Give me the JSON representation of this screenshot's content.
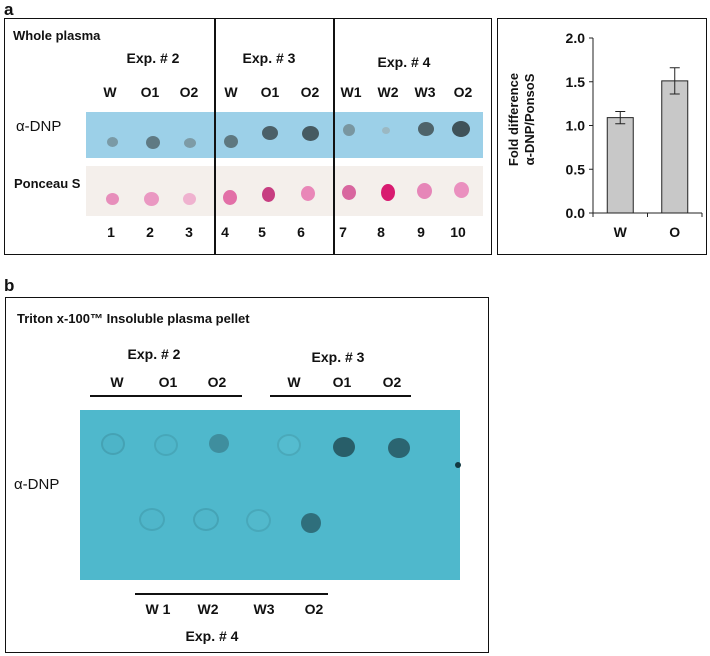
{
  "panel_a": {
    "letter": "a",
    "title": "Whole plasma",
    "groups": [
      "Exp. # 2",
      "Exp. # 3",
      "Exp. # 4"
    ],
    "lanes": [
      "W",
      "O1",
      "O2",
      "W",
      "O1",
      "O2",
      "W1",
      "W2",
      "W3",
      "O2"
    ],
    "row1_label": "α-DNP",
    "row2_label": "Ponceau S",
    "numbers": [
      "1",
      "2",
      "3",
      "4",
      "5",
      "6",
      "7",
      "8",
      "9",
      "10"
    ],
    "blot_color": "#9cd0e8",
    "stain_color": "#f4efeb"
  },
  "panel_b": {
    "letter": "b",
    "title": "Triton x-100™ Insoluble plasma pellet",
    "top_groups": [
      "Exp. # 2",
      "Exp. # 3"
    ],
    "top_lanes": [
      "W",
      "O1",
      "O2",
      "W",
      "O1",
      "O2"
    ],
    "bottom_lanes": [
      "W 1",
      "W2",
      "W3",
      "O2"
    ],
    "bottom_group": "Exp. # 4",
    "row_label": "α-DNP",
    "membrane_color": "#4fb8cc"
  },
  "chart_data": {
    "type": "bar",
    "categories": [
      "W",
      "O"
    ],
    "values": [
      1.09,
      1.51
    ],
    "errors": [
      0.07,
      0.15
    ],
    "ylabel_line1": "Fold difference",
    "ylabel_line2": "α-DNP/PonsoS",
    "ylim": [
      0.0,
      2.0
    ],
    "yticks": [
      "0.0",
      "0.5",
      "1.0",
      "1.5",
      "2.0"
    ],
    "bar_color": "#c8c8c8"
  }
}
